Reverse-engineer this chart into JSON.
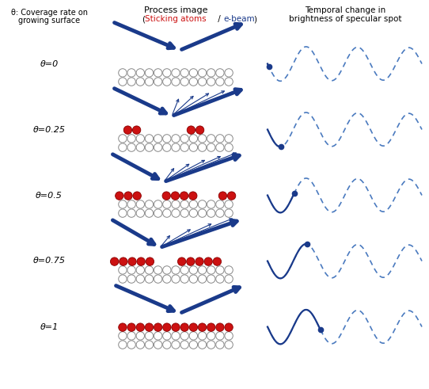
{
  "blue": "#1a3a8a",
  "red": "#cc1111",
  "dark_blue": "#1a3a8a",
  "dashed_blue": "#4a7abf",
  "gray_edge": "#888888",
  "bg": "#ffffff",
  "fig_w": 5.42,
  "fig_h": 4.91,
  "dpi": 100,
  "theta_labels": [
    "θ=0",
    "θ=0.25",
    "θ=0.5",
    "θ=0.75",
    "θ=1"
  ],
  "coverages": [
    0.0,
    0.25,
    0.5,
    0.75,
    1.0
  ]
}
